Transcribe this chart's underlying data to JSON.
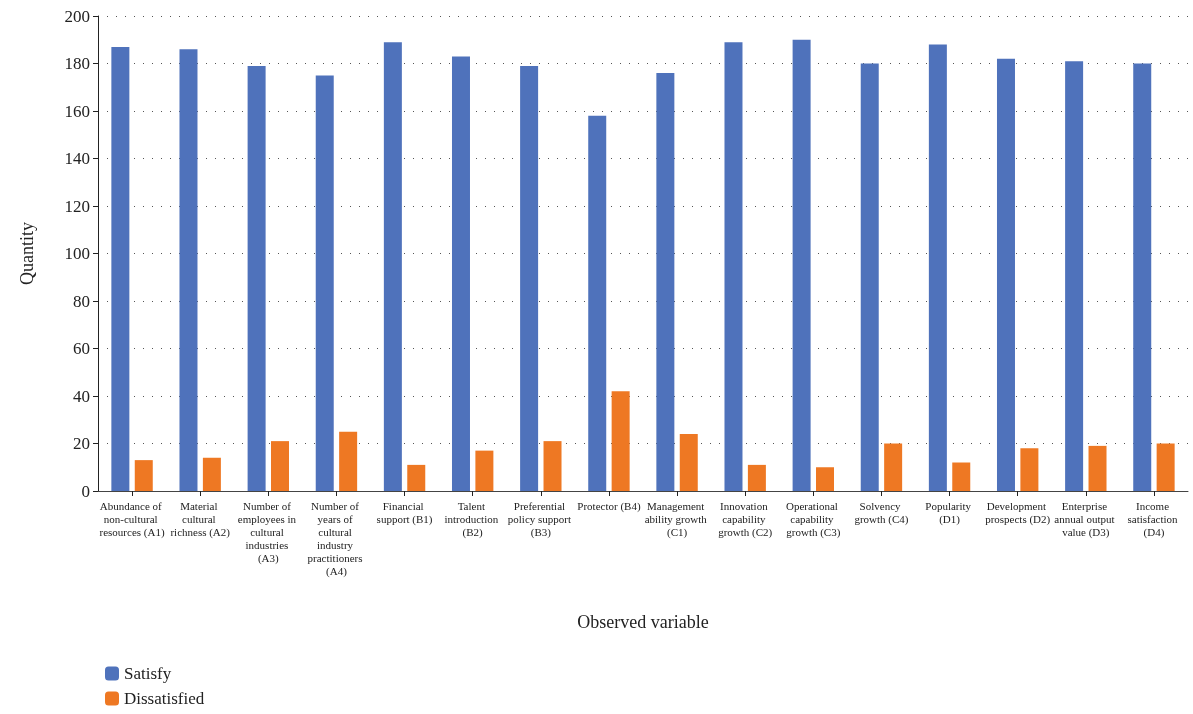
{
  "chart_data": {
    "type": "bar",
    "xlabel": "Observed variable",
    "ylabel": "Quantity",
    "categories": [
      "Abundance of non-cultural resources (A1)",
      "Material cultural richness (A2)",
      "Number of employees in cultural industries (A3)",
      "Number of years of cultural industry practitioners (A4)",
      "Financial support (B1)",
      "Talent introduction (B2)",
      "Preferential policy support (B3)",
      "Protector (B4)",
      "Management ability growth (C1)",
      "Innovation capability growth (C2)",
      "Operational capability growth (C3)",
      "Solvency growth (C4)",
      "Popularity (D1)",
      "Development prospects (D2)",
      "Enterprise annual output value (D3)",
      "Income satisfaction (D4)"
    ],
    "series": [
      {
        "name": "Satisfy",
        "color": "#4f72bb",
        "values": [
          187,
          186,
          179,
          175,
          189,
          183,
          179,
          158,
          176,
          189,
          190,
          180,
          188,
          182,
          181,
          180
        ]
      },
      {
        "name": "Dissatisfied",
        "color": "#ee7823",
        "values": [
          13,
          14,
          21,
          25,
          11,
          17,
          21,
          42,
          24,
          11,
          10,
          20,
          12,
          18,
          19,
          20
        ]
      }
    ],
    "ylim": [
      0,
      200
    ],
    "yticks": [
      0,
      20,
      40,
      60,
      80,
      100,
      120,
      140,
      160,
      180,
      200
    ],
    "grid": "y",
    "legend": "bottom left"
  }
}
